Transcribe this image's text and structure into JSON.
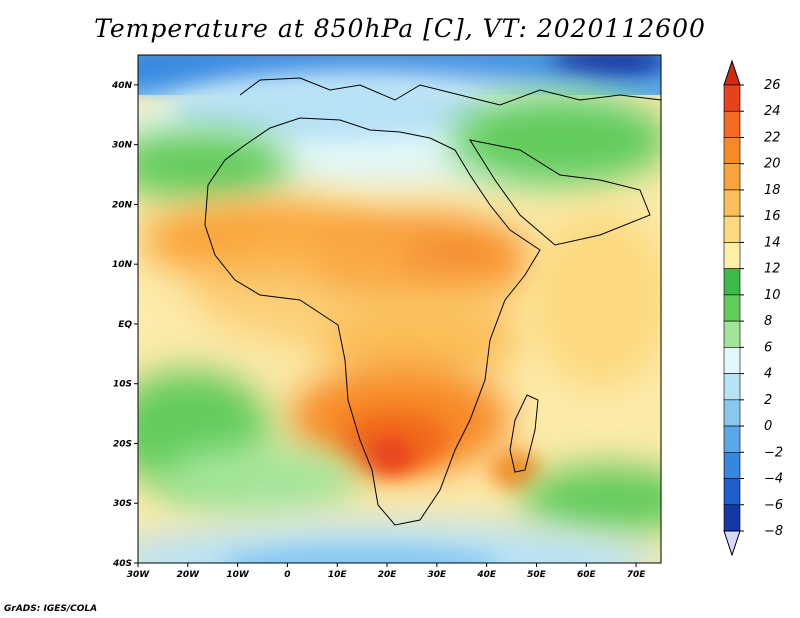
{
  "title": "Temperature at 850hPa [C], VT: 2020112600",
  "credit": "GrADS: IGES/COLA",
  "map": {
    "region": "Africa",
    "lon_range": [
      -30,
      75
    ],
    "lat_range": [
      -40,
      45
    ],
    "lat_ticks": [
      {
        "value": 40,
        "label": "40N"
      },
      {
        "value": 30,
        "label": "30N"
      },
      {
        "value": 20,
        "label": "20N"
      },
      {
        "value": 10,
        "label": "10N"
      },
      {
        "value": 0,
        "label": "EQ"
      },
      {
        "value": -10,
        "label": "10S"
      },
      {
        "value": -20,
        "label": "20S"
      },
      {
        "value": -30,
        "label": "30S"
      },
      {
        "value": -40,
        "label": "40S"
      }
    ],
    "lon_ticks": [
      {
        "value": -30,
        "label": "30W"
      },
      {
        "value": -20,
        "label": "20W"
      },
      {
        "value": -10,
        "label": "10W"
      },
      {
        "value": 0,
        "label": "0"
      },
      {
        "value": 10,
        "label": "10E"
      },
      {
        "value": 20,
        "label": "20E"
      },
      {
        "value": 30,
        "label": "30E"
      },
      {
        "value": 40,
        "label": "40E"
      },
      {
        "value": 50,
        "label": "50E"
      },
      {
        "value": 60,
        "label": "60E"
      },
      {
        "value": 70,
        "label": "70E"
      }
    ]
  },
  "colorbar": {
    "levels": [
      "26",
      "24",
      "22",
      "20",
      "18",
      "16",
      "14",
      "12",
      "10",
      "8",
      "6",
      "4",
      "2",
      "0",
      "-2",
      "-4",
      "-6",
      "-8"
    ],
    "colors": [
      "#e8421a",
      "#f26b1e",
      "#f78a26",
      "#f9a43a",
      "#fbbf5a",
      "#fdd97f",
      "#fcf0a8",
      "#3dbb4a",
      "#62cc5c",
      "#a2e59a",
      "#e2f7f9",
      "#b8e2f6",
      "#88c8f0",
      "#5aa8ea",
      "#3587e0",
      "#1e5fcc",
      "#1438a6",
      "#0a1a78"
    ],
    "top_arrow_color": "#d42a10",
    "bottom_arrow_color": "#d8d8f8"
  }
}
